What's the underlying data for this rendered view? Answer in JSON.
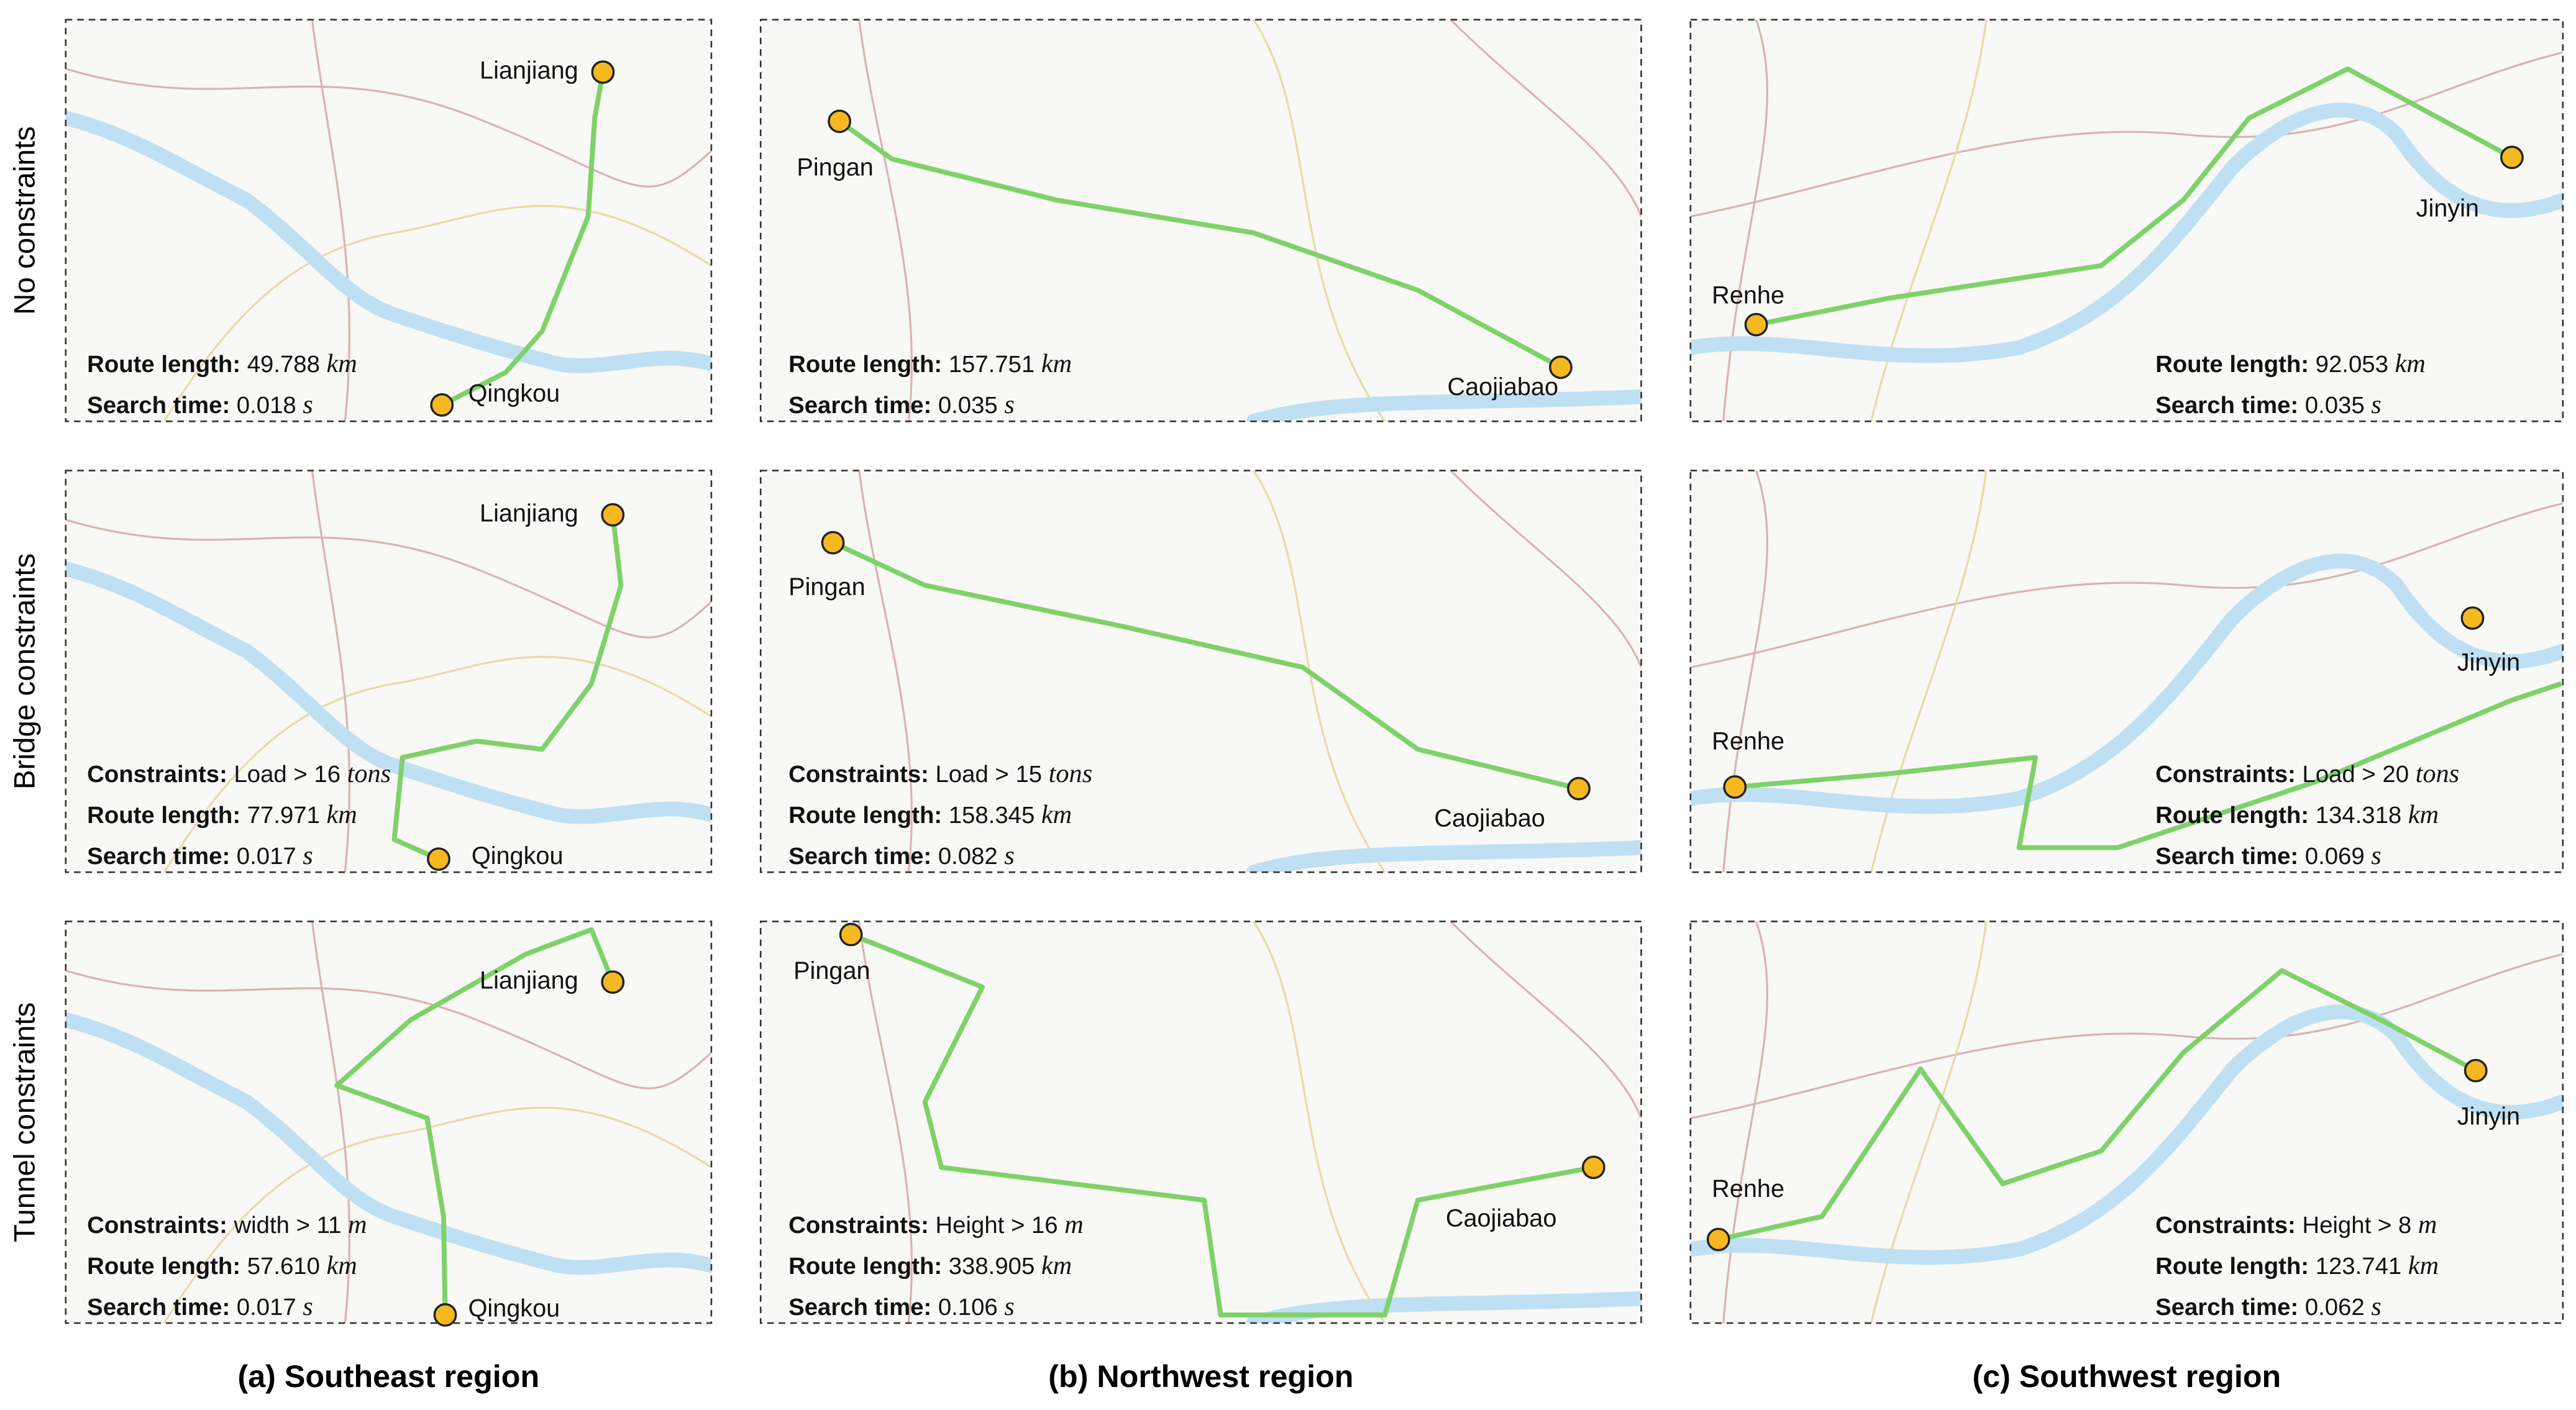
{
  "row_labels": [
    "No constraints",
    "Bridge constraints",
    "Tunnel constraints"
  ],
  "column_captions": [
    "(a) Southeast region",
    "(b) Northwest region",
    "(c) Southwest region"
  ],
  "panels": [
    [
      {
        "start": "Lianjiang",
        "end": "Qingkou",
        "route_length": {
          "label": "Route length:",
          "value": "49.788",
          "unit": "km"
        },
        "search_time": {
          "label": "Search time:",
          "value": "0.018",
          "unit": "s"
        }
      },
      {
        "start": "Pingan",
        "end": "Caojiabao",
        "route_length": {
          "label": "Route length:",
          "value": "157.751",
          "unit": "km"
        },
        "search_time": {
          "label": "Search time:",
          "value": "0.035",
          "unit": "s"
        }
      },
      {
        "start": "Renhe",
        "end": "Jinyin",
        "route_length": {
          "label": "Route length:",
          "value": "92.053",
          "unit": "km"
        },
        "search_time": {
          "label": "Search time:",
          "value": "0.035",
          "unit": "s"
        }
      }
    ],
    [
      {
        "start": "Lianjiang",
        "end": "Qingkou",
        "constraints": {
          "label": "Constraints:",
          "value": "Load > 16",
          "unit": "tons"
        },
        "route_length": {
          "label": "Route length:",
          "value": "77.971",
          "unit": "km"
        },
        "search_time": {
          "label": "Search time:",
          "value": "0.017",
          "unit": "s"
        }
      },
      {
        "start": "Pingan",
        "end": "Caojiabao",
        "constraints": {
          "label": "Constraints:",
          "value": "Load > 15",
          "unit": "tons"
        },
        "route_length": {
          "label": "Route length:",
          "value": "158.345",
          "unit": "km"
        },
        "search_time": {
          "label": "Search time:",
          "value": "0.082",
          "unit": "s"
        }
      },
      {
        "start": "Renhe",
        "end": "Jinyin",
        "constraints": {
          "label": "Constraints:",
          "value": "Load > 20",
          "unit": "tons"
        },
        "route_length": {
          "label": "Route length:",
          "value": "134.318",
          "unit": "km"
        },
        "search_time": {
          "label": "Search time:",
          "value": "0.069",
          "unit": "s"
        }
      }
    ],
    [
      {
        "start": "Lianjiang",
        "end": "Qingkou",
        "constraints": {
          "label": "Constraints:",
          "value": "width > 11",
          "unit": "m"
        },
        "route_length": {
          "label": "Route length:",
          "value": "57.610",
          "unit": "km"
        },
        "search_time": {
          "label": "Search time:",
          "value": "0.017",
          "unit": "s"
        }
      },
      {
        "start": "Pingan",
        "end": "Caojiabao",
        "constraints": {
          "label": "Constraints:",
          "value": "Height > 16",
          "unit": "m"
        },
        "route_length": {
          "label": "Route length:",
          "value": "338.905",
          "unit": "km"
        },
        "search_time": {
          "label": "Search time:",
          "value": "0.106",
          "unit": "s"
        }
      },
      {
        "start": "Renhe",
        "end": "Jinyin",
        "constraints": {
          "label": "Constraints:",
          "value": "Height > 8",
          "unit": "m"
        },
        "route_length": {
          "label": "Route length:",
          "value": "123.741",
          "unit": "km"
        },
        "search_time": {
          "label": "Search time:",
          "value": "0.062",
          "unit": "s"
        }
      }
    ]
  ]
}
